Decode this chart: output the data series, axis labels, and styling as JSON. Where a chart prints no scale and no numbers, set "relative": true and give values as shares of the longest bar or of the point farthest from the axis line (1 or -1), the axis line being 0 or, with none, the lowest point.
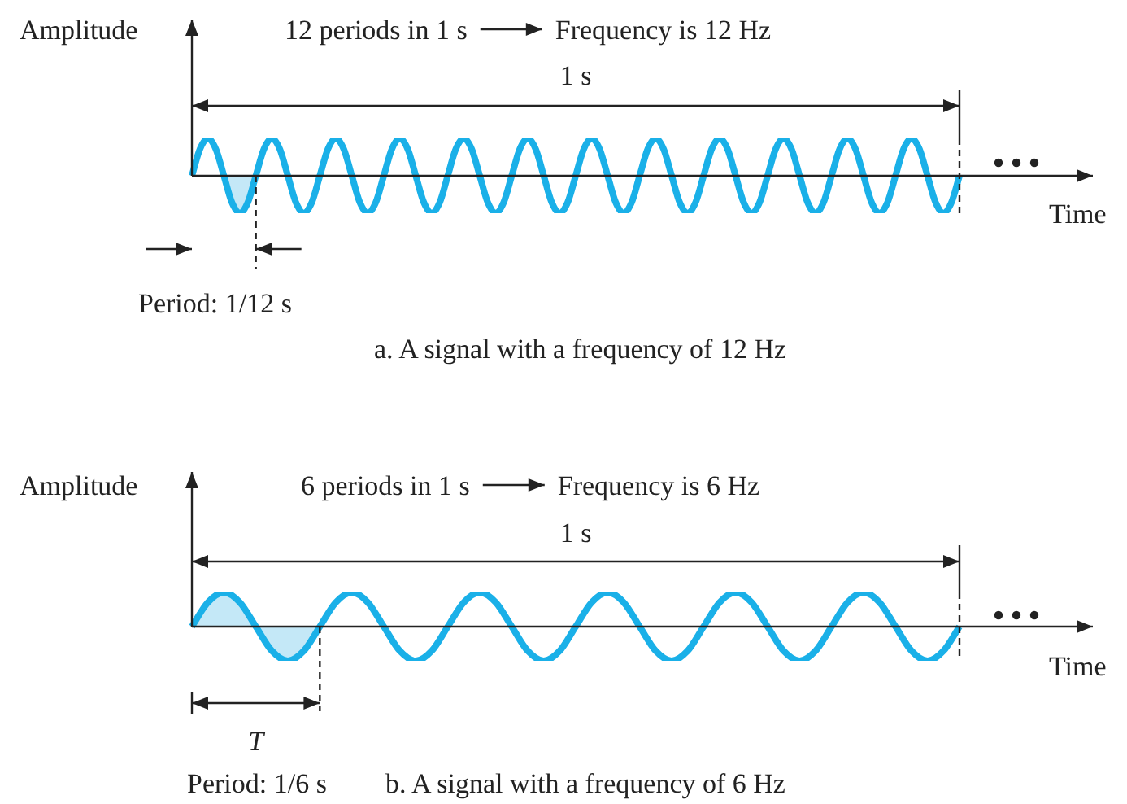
{
  "chart_data": [
    {
      "type": "line",
      "relative": true,
      "xlabel": "Time",
      "ylabel": "Amplitude",
      "annotations": [
        "12 periods in 1 s",
        "Frequency is 12 Hz",
        "1 s",
        "Period: 1/12 s",
        "a. A signal with a frequency of 12 Hz"
      ],
      "categories": [
        null,
        null,
        null,
        null,
        null,
        null,
        null,
        null,
        null,
        null,
        null,
        null,
        null,
        null,
        null,
        null,
        null,
        null,
        null,
        null,
        null,
        null,
        null,
        null,
        null,
        null,
        null,
        null,
        null,
        null,
        null,
        null,
        null,
        null,
        null,
        null,
        null,
        null,
        null,
        null,
        null,
        null,
        null,
        null,
        null,
        null,
        null,
        null,
        null,
        null,
        null,
        null,
        null,
        null,
        null,
        null,
        null,
        null,
        null,
        null,
        null,
        null,
        null,
        null,
        null,
        null,
        null,
        null,
        null,
        null,
        null,
        null,
        null,
        null,
        null,
        null,
        null,
        null,
        null,
        null,
        null,
        null,
        null,
        null,
        null,
        null,
        null,
        null,
        null,
        null,
        null,
        null,
        null,
        null,
        null,
        null,
        null
      ],
      "series": [
        {
          "color": "#1ab0e8",
          "values": [
            0,
            0.71,
            1,
            0.71,
            0,
            -0.71,
            -1,
            -0.71,
            0,
            0.71,
            1,
            0.71,
            0,
            -0.71,
            -1,
            -0.71,
            0,
            0.71,
            1,
            0.71,
            0,
            -0.71,
            -1,
            -0.71,
            0,
            0.71,
            1,
            0.71,
            0,
            -0.71,
            -1,
            -0.71,
            0,
            0.71,
            1,
            0.71,
            0,
            -0.71,
            -1,
            -0.71,
            0,
            0.71,
            1,
            0.71,
            0,
            -0.71,
            -1,
            -0.71,
            0,
            0.71,
            1,
            0.71,
            0,
            -0.71,
            -1,
            -0.71,
            0,
            0.71,
            1,
            0.71,
            0,
            -0.71,
            -1,
            -0.71,
            0,
            0.71,
            1,
            0.71,
            0,
            -0.71,
            -1,
            -0.71,
            0,
            0.71,
            1,
            0.71,
            0,
            -0.71,
            -1,
            -0.71,
            0,
            0.71,
            1,
            0.71,
            0,
            -0.71,
            -1,
            -0.71,
            0,
            0.71,
            1,
            0.71,
            0,
            -0.71,
            -1,
            -0.71,
            0
          ]
        }
      ]
    },
    {
      "type": "line",
      "relative": true,
      "xlabel": "Time",
      "ylabel": "Amplitude",
      "annotations": [
        "6 periods in 1 s",
        "Frequency is 6 Hz",
        "1 s",
        "T",
        "Period: 1/6 s",
        "b. A signal with a frequency of 6 Hz"
      ],
      "categories": [
        null,
        null,
        null,
        null,
        null,
        null,
        null,
        null,
        null,
        null,
        null,
        null,
        null,
        null,
        null,
        null,
        null,
        null,
        null,
        null,
        null,
        null,
        null,
        null,
        null,
        null,
        null,
        null,
        null,
        null,
        null,
        null,
        null,
        null,
        null,
        null,
        null,
        null,
        null,
        null,
        null,
        null,
        null,
        null,
        null,
        null,
        null,
        null,
        null
      ],
      "series": [
        {
          "color": "#1ab0e8",
          "values": [
            0,
            0.71,
            1,
            0.71,
            0,
            -0.71,
            -1,
            -0.71,
            0,
            0.71,
            1,
            0.71,
            0,
            -0.71,
            -1,
            -0.71,
            0,
            0.71,
            1,
            0.71,
            0,
            -0.71,
            -1,
            -0.71,
            0,
            0.71,
            1,
            0.71,
            0,
            -0.71,
            -1,
            -0.71,
            0,
            0.71,
            1,
            0.71,
            0,
            -0.71,
            -1,
            -0.71,
            0,
            0.71,
            1,
            0.71,
            0,
            -0.71,
            -1,
            -0.71,
            0
          ]
        }
      ]
    }
  ]
}
